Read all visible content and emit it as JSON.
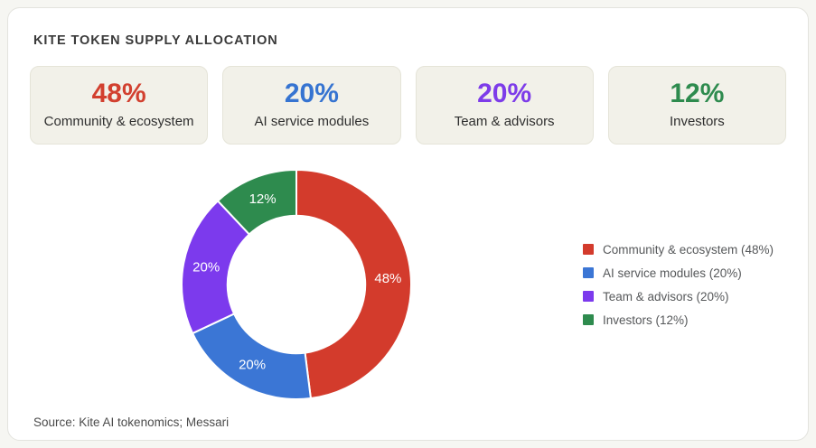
{
  "title": "KITE TOKEN SUPPLY ALLOCATION",
  "source": "Source: Kite AI tokenomics; Messari",
  "stats": [
    {
      "value": "48%",
      "label": "Community & ecosystem",
      "color": "#d2402f"
    },
    {
      "value": "20%",
      "label": "AI service modules",
      "color": "#3674d1"
    },
    {
      "value": "20%",
      "label": "Team & advisors",
      "color": "#7d3ce9"
    },
    {
      "value": "12%",
      "label": "Investors",
      "color": "#2e8b4e"
    }
  ],
  "chart_data": {
    "type": "pie",
    "title": "KITE TOKEN SUPPLY ALLOCATION",
    "categories": [
      "Community & ecosystem",
      "AI service modules",
      "Team & advisors",
      "Investors"
    ],
    "values": [
      48,
      20,
      20,
      12
    ],
    "slice_labels": [
      "48%",
      "20%",
      "20%",
      "12%"
    ],
    "colors": [
      "#d33b2c",
      "#3b76d5",
      "#7c3aed",
      "#2e8b4e"
    ],
    "donut_hole": 0.6,
    "start_angle_deg": 0,
    "direction": "clockwise",
    "legend_position": "right",
    "legend": [
      "Community & ecosystem (48%)",
      "AI service modules (20%)",
      "Team & advisors (20%)",
      "Investors (12%)"
    ]
  }
}
